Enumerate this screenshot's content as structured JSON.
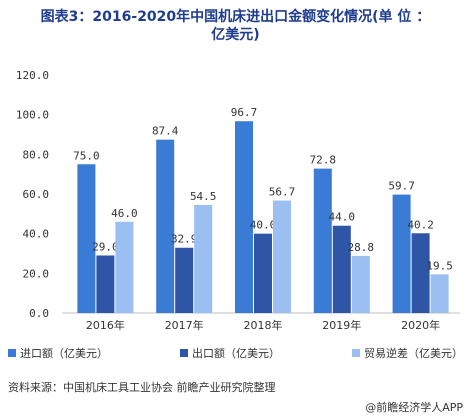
{
  "title": "图表3：2016-2020年中国机床进出口金额变化情况(单 位 ：\n亿美元)",
  "source": "资料来源：中国机床工具工业协会 前瞻产业研究院整理",
  "brand": "@前瞻经济学人APP",
  "colors": {
    "title": "#1f3d8f",
    "series": [
      "#3a7bd5",
      "#2f55a6",
      "#9bbff0"
    ],
    "axis": "#bfbfbf",
    "grid": "#e5e5e5"
  },
  "chart_data": {
    "type": "bar",
    "categories": [
      "2016年",
      "2017年",
      "2018年",
      "2019年",
      "2020年"
    ],
    "series": [
      {
        "name": "进口额（亿美元）",
        "values": [
          75.0,
          87.4,
          96.7,
          72.8,
          59.7
        ]
      },
      {
        "name": "出口额（亿美元）",
        "values": [
          29.0,
          32.9,
          40.0,
          44.0,
          40.2
        ]
      },
      {
        "name": "贸易逆差（亿美元）",
        "values": [
          46.0,
          54.5,
          56.7,
          28.8,
          19.5
        ]
      }
    ],
    "ylim": [
      0,
      120
    ],
    "yticks": [
      "0.0",
      "20.0",
      "40.0",
      "60.0",
      "80.0",
      "100.0",
      "120.0"
    ],
    "data_labels": [
      [
        "75.0",
        "87.4",
        "96.7",
        "72.8",
        "59.7"
      ],
      [
        "29.0",
        "32.9",
        "40.0",
        "44.0",
        "40.2"
      ],
      [
        "46.0",
        "54.5",
        "56.7",
        "28.8",
        "19.5"
      ]
    ],
    "legend": "bottom",
    "grid": false
  }
}
